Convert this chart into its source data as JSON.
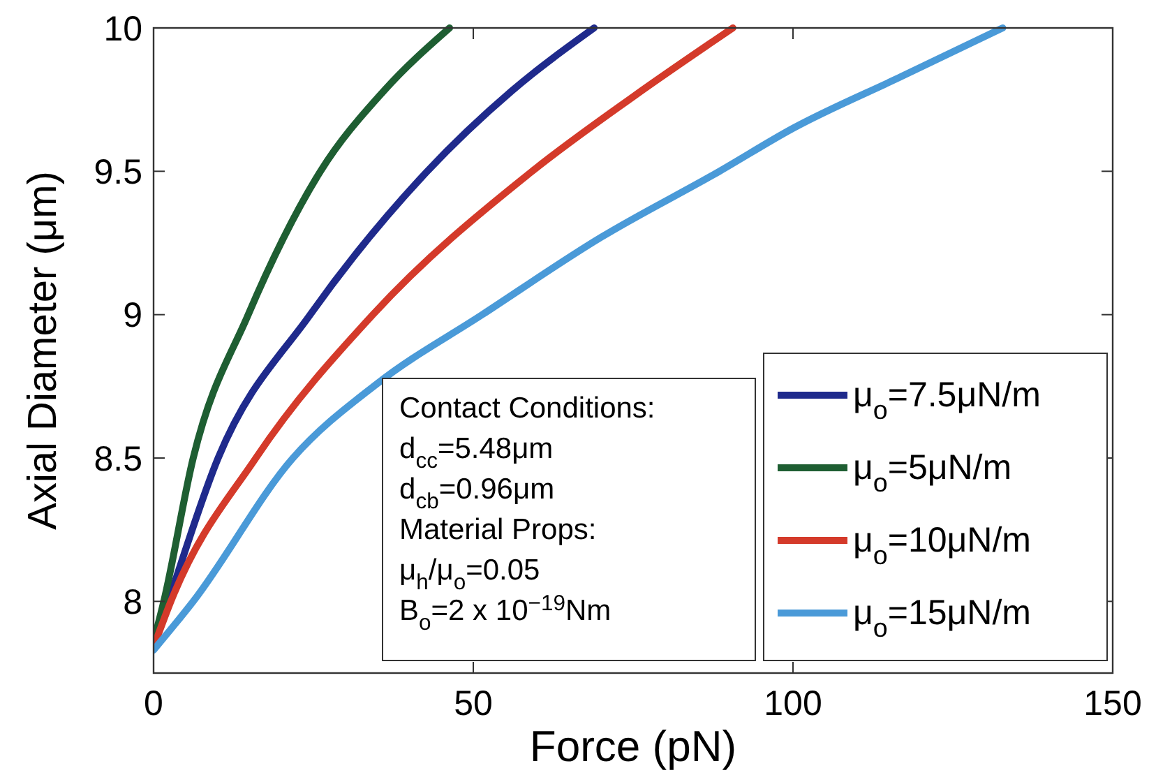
{
  "chart_data": {
    "type": "line",
    "xlabel": "Force (pN)",
    "ylabel": "Axial Diameter (μm)",
    "xlim": [
      0,
      150
    ],
    "xticks": [
      0,
      50,
      100,
      150
    ],
    "ylim": [
      7.75,
      10
    ],
    "yticks": [
      8,
      8.5,
      9,
      9.5,
      10
    ],
    "grid": false,
    "legend": "bottom right",
    "marker": "none",
    "line_style": "solid",
    "series": [
      {
        "name": "μ$_{o}$=7.5μN/m",
        "color": "#1f2a8c",
        "x": [
          0,
          2.3,
          10.1,
          24.5,
          42.8,
          56,
          68.9
        ],
        "values": [
          7.85,
          8,
          8.5,
          9,
          9.5,
          9.78,
          10
        ]
      },
      {
        "name": "μ$_{o}$=5μN/m",
        "color": "#1e5e32",
        "x": [
          0,
          1.6,
          6.2,
          14.8,
          26.1,
          36,
          46.3
        ],
        "values": [
          7.86,
          8,
          8.5,
          9,
          9.5,
          9.78,
          10
        ]
      },
      {
        "name": "μ$_{o}$=10μN/m",
        "color": "#d43a2a",
        "x": [
          0,
          2.7,
          16,
          34.3,
          59.2,
          75,
          90.6
        ],
        "values": [
          7.84,
          8,
          8.5,
          9,
          9.5,
          9.76,
          10
        ]
      },
      {
        "name": "μ$_{o}$=15μN/m",
        "color": "#4a9ad8",
        "x": [
          0,
          6.2,
          21.8,
          35,
          51.4,
          70,
          88.5,
          100,
          116.9,
          132.8
        ],
        "values": [
          7.83,
          8,
          8.5,
          8.76,
          9,
          9.27,
          9.5,
          9.65,
          9.83,
          10
        ]
      }
    ],
    "annotations": [
      "Contact Conditions:",
      "d$_{cc}$=5.48μm",
      "d$_{cb}$=0.96μm",
      "Material Props:",
      "μ$_{h}$/μ$_{o}$=0.05",
      "B$_{o}$=2 x 10$^{−19}$Nm"
    ]
  }
}
